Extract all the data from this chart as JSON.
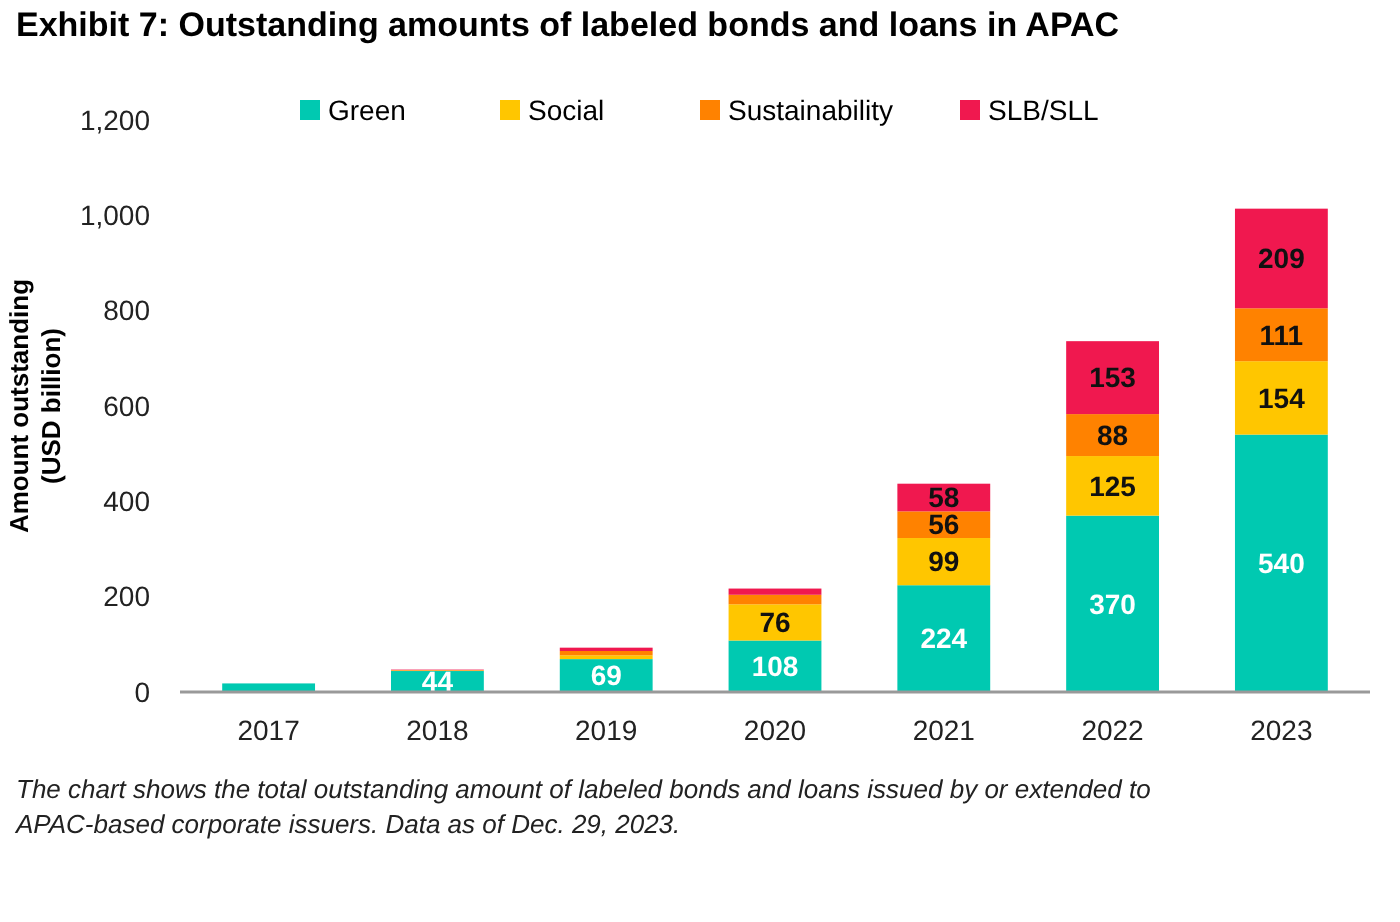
{
  "chart_data": {
    "type": "bar",
    "stacked": true,
    "title": "Exhibit 7: Outstanding amounts of labeled bonds and loans in APAC",
    "ylabel": "Amount outstanding\n(USD billion)",
    "categories": [
      "2017",
      "2018",
      "2019",
      "2020",
      "2021",
      "2022",
      "2023"
    ],
    "series": [
      {
        "name": "Green",
        "color": "#00c9b1",
        "values": [
          18,
          44,
          69,
          108,
          224,
          370,
          540
        ],
        "value_labels": [
          null,
          "44",
          "69",
          "108",
          "224",
          "370",
          "540"
        ]
      },
      {
        "name": "Social",
        "color": "#ffc600",
        "values": [
          0,
          1,
          8,
          76,
          99,
          125,
          154
        ],
        "value_labels": [
          null,
          null,
          null,
          "76",
          "99",
          "125",
          "154"
        ]
      },
      {
        "name": "Sustainability",
        "color": "#ff8200",
        "values": [
          0,
          1,
          9,
          20,
          56,
          88,
          111
        ],
        "value_labels": [
          null,
          null,
          null,
          null,
          "56",
          "88",
          "111"
        ]
      },
      {
        "name": "SLB/SLL",
        "color": "#f0184f",
        "values": [
          0,
          1,
          7,
          13,
          58,
          153,
          209
        ],
        "value_labels": [
          null,
          null,
          null,
          null,
          "58",
          "153",
          "209"
        ]
      }
    ],
    "ylim": [
      0,
      1200
    ],
    "yticks": [
      0,
      200,
      400,
      600,
      800,
      {
        "value": 1000,
        "label": "1,000"
      },
      {
        "value": 1200,
        "label": "1,200"
      }
    ],
    "legend": "top",
    "annotations": [
      "The chart shows the total outstanding amount of labeled bonds and loans issued by or extended to APAC-based corporate issuers. Data as of Dec. 29, 2023."
    ]
  }
}
